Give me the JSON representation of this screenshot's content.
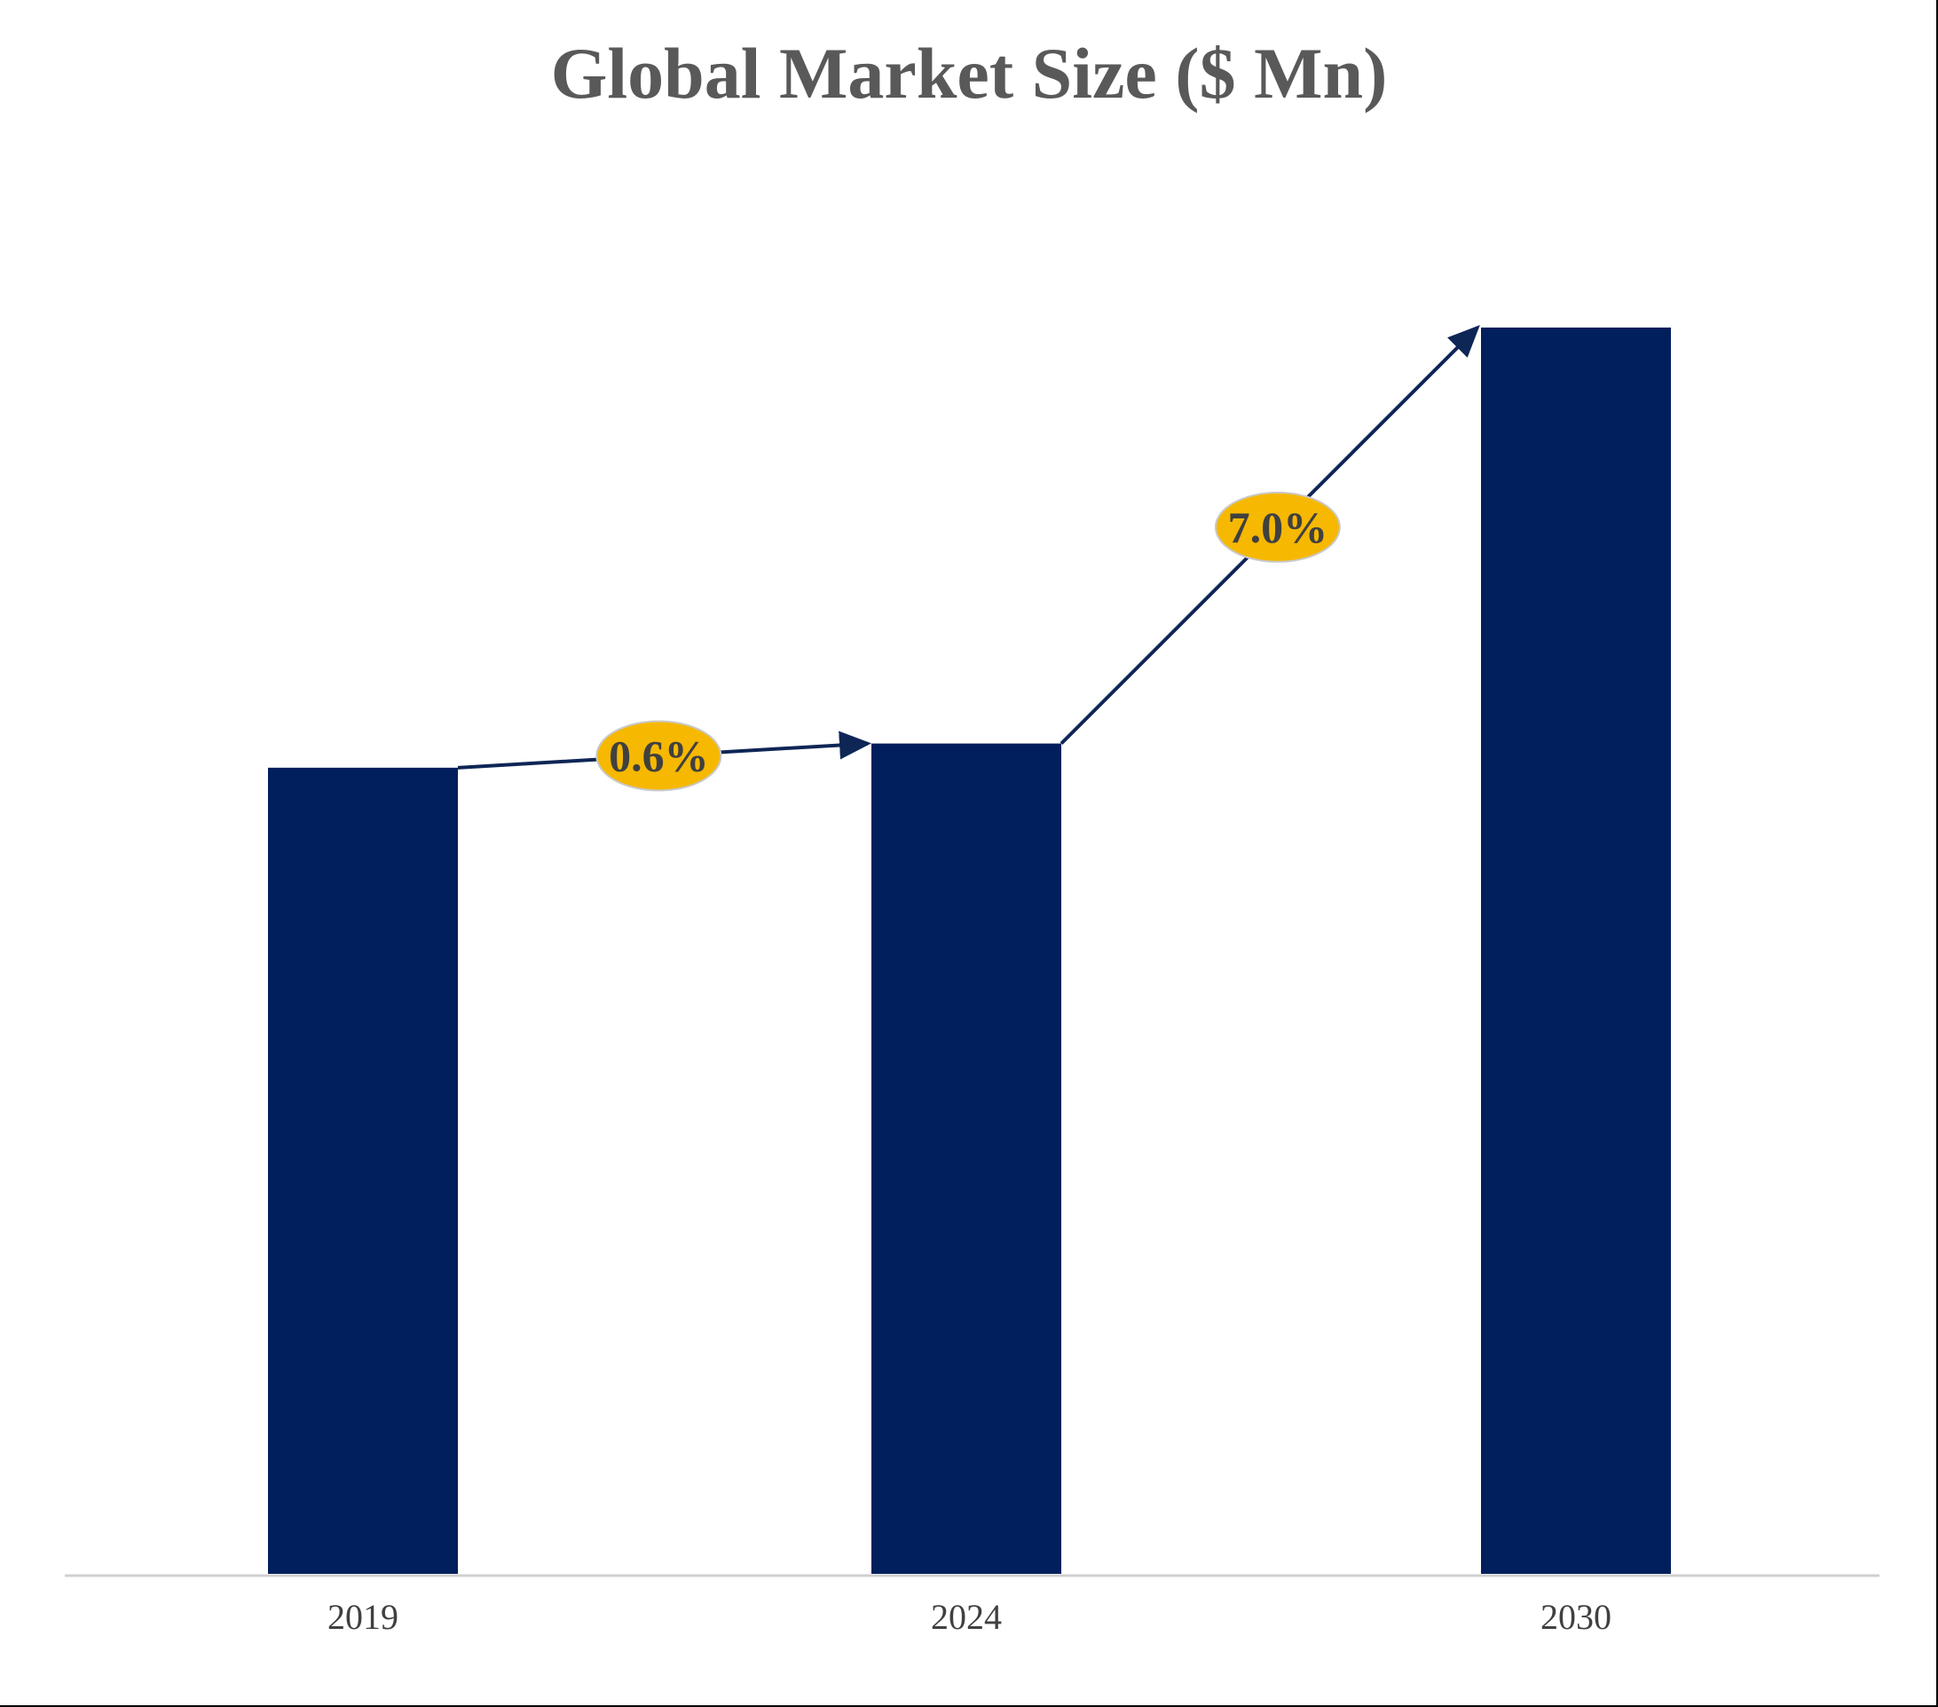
{
  "chart_data": {
    "type": "bar",
    "title": "Global Market Size ($ Mn)",
    "xlabel": "",
    "ylabel": "",
    "categories": [
      "2019",
      "2024",
      "2030"
    ],
    "values": [
      100,
      103.0,
      154.6
    ],
    "ylim": [
      0,
      154.6
    ],
    "grid": false,
    "legend": "none",
    "growth_annotations": [
      {
        "from": "2019",
        "to": "2024",
        "label": "0.6%"
      },
      {
        "from": "2024",
        "to": "2030",
        "label": "7.0%"
      }
    ],
    "colors": {
      "bar": "#001f5c",
      "arrow": "#0e2656",
      "badge_fill": "#f6b800",
      "badge_stroke": "#c9c9c9",
      "axis": "#d0d0d0",
      "title": "#595959",
      "tick": "#404040"
    }
  }
}
